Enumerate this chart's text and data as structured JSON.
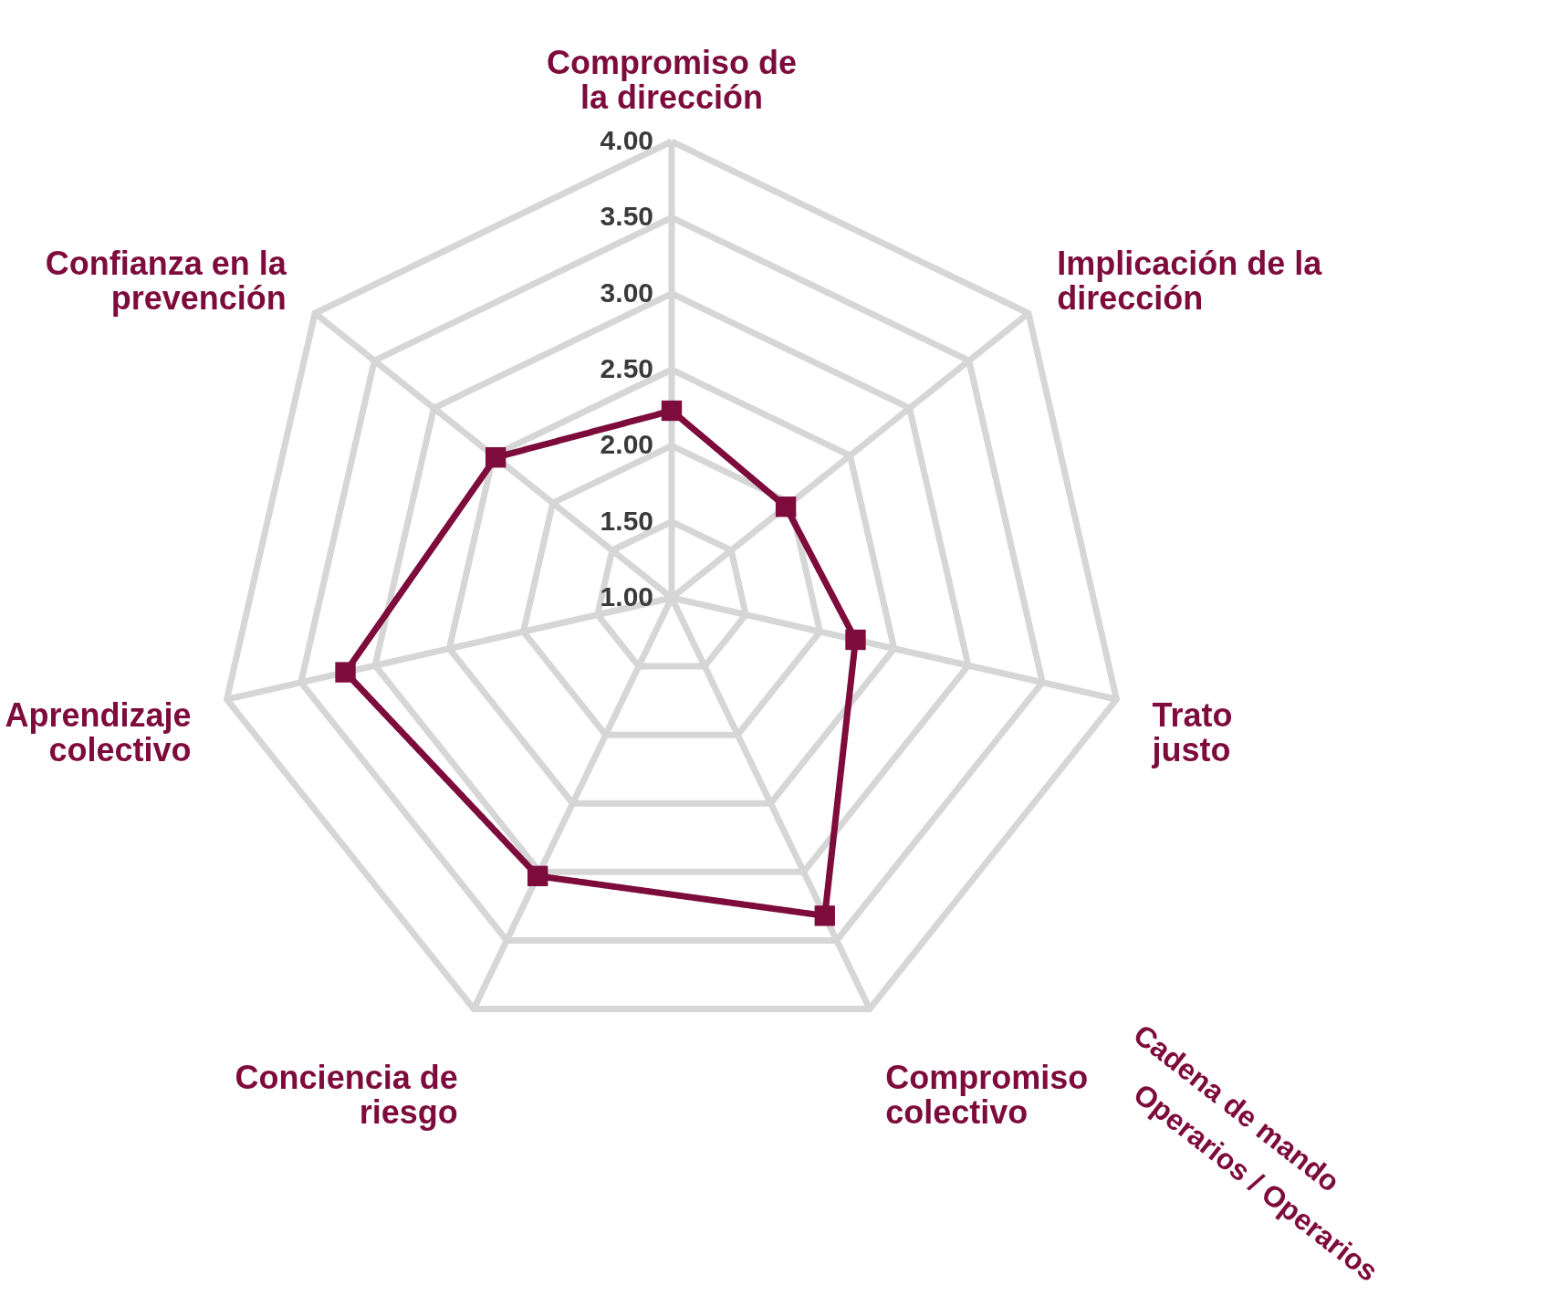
{
  "chart_data": {
    "type": "radar",
    "categories": [
      "Compromiso de\nla dirección",
      "Implicación de la\ndirección",
      "Trato\njusto",
      "Compromiso\ncolectivo",
      "Conciencia de\nriesgo",
      "Aprendizaje\ncolectivo",
      "Confianza en la\nprevención"
    ],
    "series": [
      {
        "color": "#7d0b3c",
        "values": [
          2.23,
          1.96,
          2.24,
          3.32,
          3.03,
          3.2,
          2.48
        ]
      }
    ],
    "ylim": [
      1,
      4
    ],
    "yticks": [
      {
        "value": 1,
        "label": "1.00"
      },
      {
        "value": 1.5,
        "label": "1.50"
      },
      {
        "value": 2,
        "label": "2.00"
      },
      {
        "value": 2.5,
        "label": "2.50"
      },
      {
        "value": 3,
        "label": "3.00"
      },
      {
        "value": 3.5,
        "label": "3.50"
      },
      {
        "value": 4,
        "label": "4.00"
      }
    ],
    "grid": true,
    "marker": "square",
    "line_style": "solid",
    "annotations": [
      "Cadena de mando",
      "Operarios / Operarios"
    ]
  }
}
